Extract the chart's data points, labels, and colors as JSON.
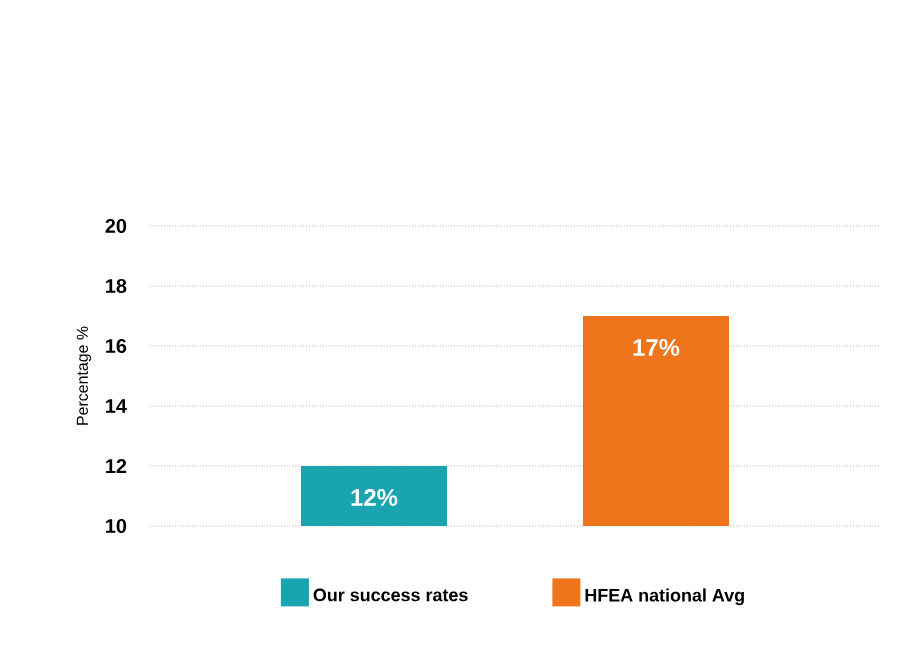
{
  "chart_data": {
    "type": "bar",
    "ylabel": "Percentage %",
    "categories": [
      null
    ],
    "series": [
      {
        "name": "Our success rates",
        "color": "#19a4b0",
        "values": [
          12
        ],
        "value_labels": [
          "12%"
        ]
      },
      {
        "name": "HFEA national Avg",
        "color": "#ef751c",
        "values": [
          17
        ],
        "value_labels": [
          "17%"
        ]
      }
    ],
    "ylim": [
      10,
      20
    ],
    "yticks": [
      10,
      12,
      14,
      16,
      18,
      20
    ],
    "grid": "y",
    "legend": "bottom"
  }
}
